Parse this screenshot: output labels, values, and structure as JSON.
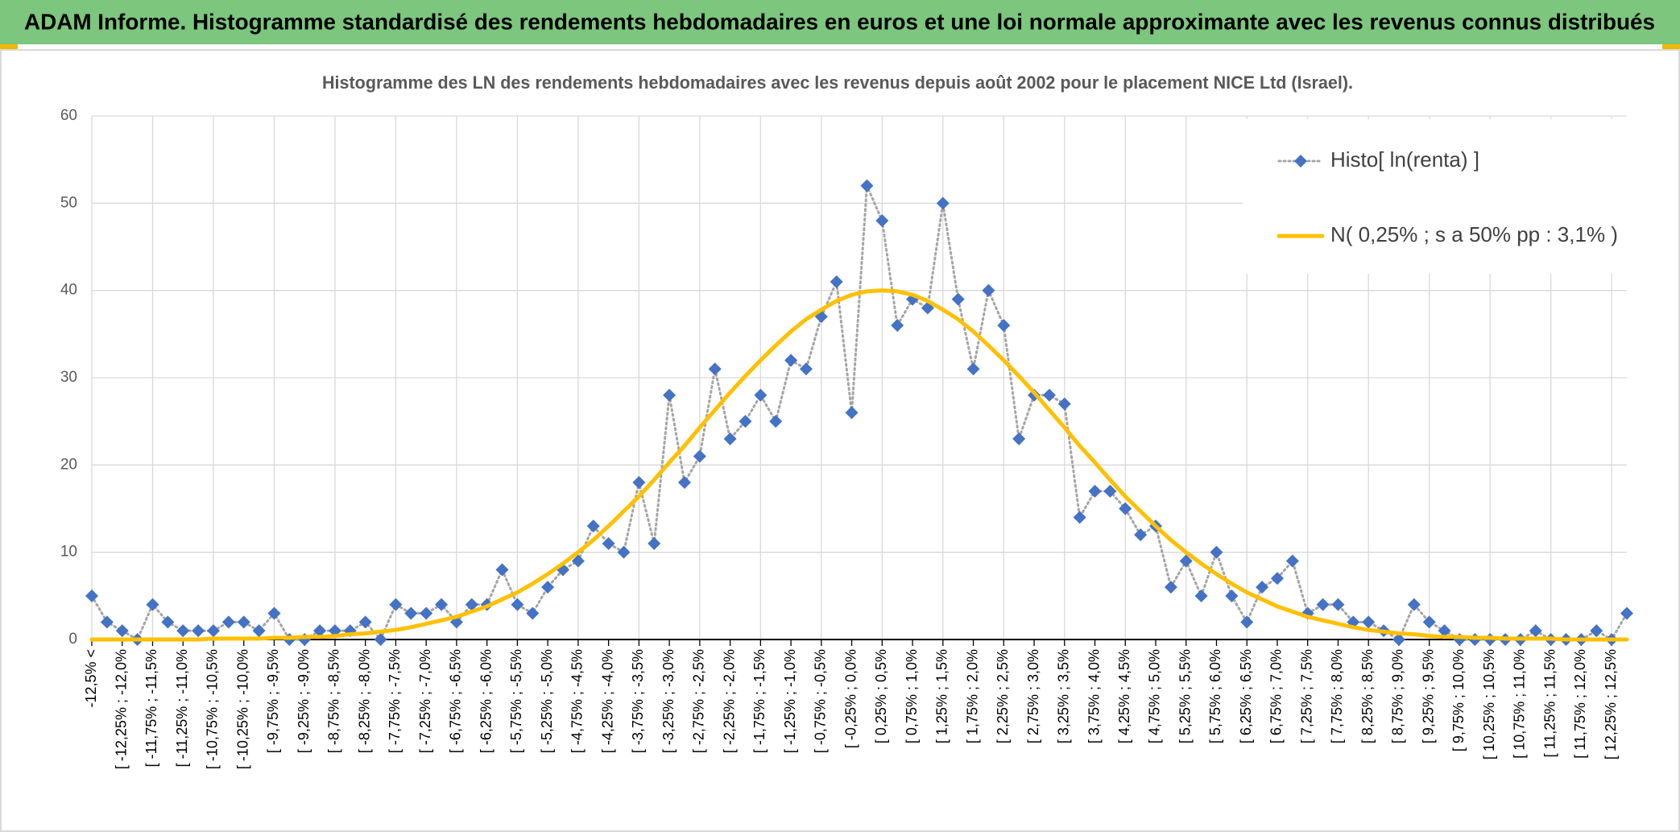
{
  "chart_data": {
    "type": "line",
    "title": "ADAM Informe. Histogramme standardisé des rendements hebdomadaires en euros et une loi normale approximante avec les revenus connus distribués",
    "subtitle": "Histogramme des LN des rendements hebdomadaires avec les revenus depuis août 2002 pour le placement NICE Ltd (Israel).",
    "categories": [
      "-12,5% <",
      null,
      "[ -12,25% ; -12,0%",
      null,
      "[ -11,75% ; -11,5%",
      null,
      "[ -11,25% ; -11,0%",
      null,
      "[ -10,75% ; -10,5%",
      null,
      "[ -10,25% ; -10,0%",
      null,
      "[ -9,75% ; -9,5%",
      null,
      "[ -9,25% ; -9,0%",
      null,
      "[ -8,75% ; -8,5%",
      null,
      "[ -8,25% ; -8,0%",
      null,
      "[ -7,75% ; -7,5%",
      null,
      "[ -7,25% ; -7,0%",
      null,
      "[ -6,75% ; -6,5%",
      null,
      "[ -6,25% ; -6,0%",
      null,
      "[ -5,75% ; -5,5%",
      null,
      "[ -5,25% ; -5,0%",
      null,
      "[ -4,75% ; -4,5%",
      null,
      "[ -4,25% ; -4,0%",
      null,
      "[ -3,75% ; -3,5%",
      null,
      "[ -3,25% ; -3,0%",
      null,
      "[ -2,75% ; -2,5%",
      null,
      "[ -2,25% ; -2,0%",
      null,
      "[ -1,75% ; -1,5%",
      null,
      "[ -1,25% ; -1,0%",
      null,
      "[ -0,75% ; -0,5%",
      null,
      "[ -0,25% ; 0,0%",
      null,
      "[ 0,25% ; 0,5%",
      null,
      "[ 0,75% ; 1,0%",
      null,
      "[ 1,25% ; 1,5%",
      null,
      "[ 1,75% ; 2,0%",
      null,
      "[ 2,25% ; 2,5%",
      null,
      "[ 2,75% ; 3,0%",
      null,
      "[ 3,25% ; 3,5%",
      null,
      "[ 3,75% ; 4,0%",
      null,
      "[ 4,25% ; 4,5%",
      null,
      "[ 4,75% ; 5,0%",
      null,
      "[ 5,25% ; 5,5%",
      null,
      "[ 5,75% ; 6,0%",
      null,
      "[ 6,25% ; 6,5%",
      null,
      "[ 6,75% ; 7,0%",
      null,
      "[ 7,25% ; 7,5%",
      null,
      "[ 7,75% ; 8,0%",
      null,
      "[ 8,25% ; 8,5%",
      null,
      "[ 8,75% ; 9,0%",
      null,
      "[ 9,25% ; 9,5%",
      null,
      "[ 9,75% ; 10,0%",
      null,
      "[ 10,25% ; 10,5%",
      null,
      "[ 10,75% ; 11,0%",
      null,
      "[ 11,25% ; 11,5%",
      null,
      "[ 11,75% ; 12,0%",
      null,
      "[ 12,25% ; 12,5%",
      null
    ],
    "series": [
      {
        "name": "Histo[ ln(renta) ]",
        "color": "#4472c4",
        "line_color": "#a5a5a5",
        "line_style": "dotted",
        "marker": "diamond",
        "values": [
          5,
          2,
          1,
          0,
          4,
          2,
          1,
          1,
          1,
          2,
          2,
          1,
          3,
          0,
          0,
          1,
          1,
          1,
          2,
          0,
          4,
          3,
          3,
          4,
          2,
          4,
          4,
          8,
          4,
          3,
          6,
          8,
          9,
          13,
          11,
          10,
          18,
          11,
          28,
          18,
          21,
          31,
          23,
          25,
          28,
          25,
          32,
          31,
          37,
          41,
          26,
          52,
          48,
          36,
          39,
          38,
          50,
          39,
          31,
          40,
          36,
          23,
          28,
          28,
          27,
          14,
          17,
          17,
          15,
          12,
          13,
          6,
          9,
          5,
          10,
          5,
          2,
          6,
          7,
          9,
          3,
          4,
          4,
          2,
          2,
          1,
          0,
          4,
          2,
          1,
          0,
          0,
          0,
          0,
          0,
          1,
          0,
          0,
          0,
          1,
          0,
          3
        ]
      },
      {
        "name": "N( 0,25% ; s a 50% pp : 3,1% )",
        "color": "#ffc000",
        "line_style": "solid",
        "marker": "none",
        "values": [
          0,
          0,
          0,
          0,
          0,
          0,
          0,
          0,
          0.1,
          0.1,
          0.1,
          0.1,
          0.2,
          0.2,
          0.3,
          0.3,
          0.4,
          0.6,
          0.7,
          0.9,
          1.1,
          1.4,
          1.8,
          2.2,
          2.6,
          3.2,
          3.8,
          4.6,
          5.4,
          6.4,
          7.5,
          8.7,
          10,
          11.4,
          13,
          14.7,
          16.4,
          18.3,
          20.3,
          22.2,
          24.3,
          26.3,
          28.3,
          30.2,
          32,
          33.7,
          35.3,
          36.7,
          37.8,
          38.8,
          39.5,
          39.9,
          40,
          39.9,
          39.5,
          38.8,
          37.8,
          36.7,
          35.3,
          33.7,
          32,
          30.2,
          28.3,
          26.3,
          24.3,
          22.2,
          20.3,
          18.3,
          16.4,
          14.7,
          13,
          11.4,
          10,
          8.7,
          7.5,
          6.4,
          5.4,
          4.6,
          3.8,
          3.2,
          2.6,
          2.2,
          1.8,
          1.4,
          1.1,
          0.9,
          0.7,
          0.6,
          0.4,
          0.3,
          0.3,
          0.2,
          0.2,
          0.1,
          0.1,
          0.1,
          0.1,
          0,
          0,
          0,
          0,
          0
        ]
      }
    ],
    "ylim": [
      0,
      60
    ],
    "yticks": [
      0,
      10,
      20,
      30,
      40,
      50,
      60
    ],
    "grid": true,
    "legend": "top-right"
  }
}
